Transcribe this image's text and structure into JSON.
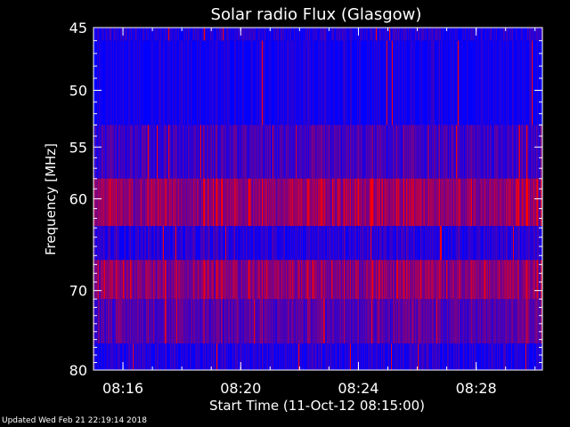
{
  "chart_data": {
    "type": "heatmap",
    "title": "Solar radio Flux (Glasgow)",
    "ylabel": "Frequency [MHz]",
    "xlabel": "Start Time (11-Oct-12 08:15:00)",
    "x_unit": "minutes",
    "xlim": [
      "08:15:00",
      "08:30:15"
    ],
    "ylim": [
      45,
      80
    ],
    "y_scale": "log",
    "y_inverted": true,
    "y_ticks": [
      45,
      50,
      55,
      60,
      70,
      80
    ],
    "x_ticks": [
      "08:16",
      "08:20",
      "08:24",
      "08:28"
    ],
    "color_map": [
      "#0000ff",
      "#ff0000"
    ],
    "frequency_bands": [
      {
        "from": 45.0,
        "to": 46.0,
        "level": 0.12
      },
      {
        "from": 46.0,
        "to": 53.0,
        "level": 0.05
      },
      {
        "from": 53.0,
        "to": 58.0,
        "level": 0.25
      },
      {
        "from": 58.0,
        "to": 62.8,
        "level": 0.6
      },
      {
        "from": 62.8,
        "to": 66.5,
        "level": 0.15
      },
      {
        "from": 66.5,
        "to": 71.0,
        "level": 0.55
      },
      {
        "from": 71.0,
        "to": 76.5,
        "level": 0.35
      },
      {
        "from": 76.5,
        "to": 80.0,
        "level": 0.12
      }
    ]
  },
  "footer": {
    "updated_text": "Updated Wed Feb 21 22:19:14 2018"
  }
}
